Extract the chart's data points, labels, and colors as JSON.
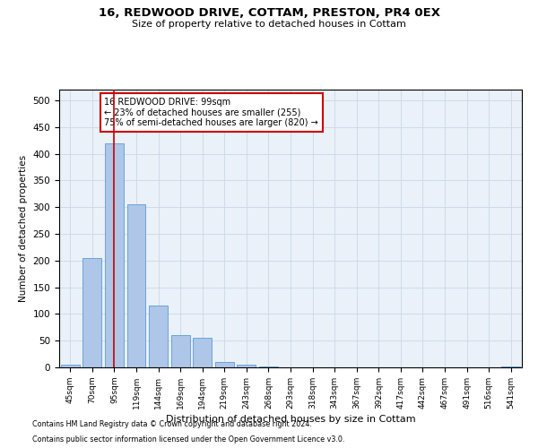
{
  "title1": "16, REDWOOD DRIVE, COTTAM, PRESTON, PR4 0EX",
  "title2": "Size of property relative to detached houses in Cottam",
  "xlabel": "Distribution of detached houses by size in Cottam",
  "ylabel": "Number of detached properties",
  "footer1": "Contains HM Land Registry data © Crown copyright and database right 2024.",
  "footer2": "Contains public sector information licensed under the Open Government Licence v3.0.",
  "bin_labels": [
    "45sqm",
    "70sqm",
    "95sqm",
    "119sqm",
    "144sqm",
    "169sqm",
    "194sqm",
    "219sqm",
    "243sqm",
    "268sqm",
    "293sqm",
    "318sqm",
    "343sqm",
    "367sqm",
    "392sqm",
    "417sqm",
    "442sqm",
    "467sqm",
    "491sqm",
    "516sqm",
    "541sqm"
  ],
  "bar_values": [
    5,
    205,
    420,
    305,
    115,
    60,
    55,
    10,
    5,
    1,
    0,
    0,
    0,
    0,
    0,
    0,
    0,
    0,
    0,
    0,
    2
  ],
  "bar_color": "#aec6e8",
  "bar_edge_color": "#5b9bd5",
  "bg_color": "#eaf1f8",
  "grid_color": "#c8d8e8",
  "vline_x_index": 2,
  "vline_color": "#cc0000",
  "annotation_text": "16 REDWOOD DRIVE: 99sqm\n← 23% of detached houses are smaller (255)\n75% of semi-detached houses are larger (820) →",
  "annotation_box_color": "#ffffff",
  "annotation_border_color": "#cc0000",
  "ylim": [
    0,
    520
  ],
  "yticks": [
    0,
    50,
    100,
    150,
    200,
    250,
    300,
    350,
    400,
    450,
    500
  ]
}
